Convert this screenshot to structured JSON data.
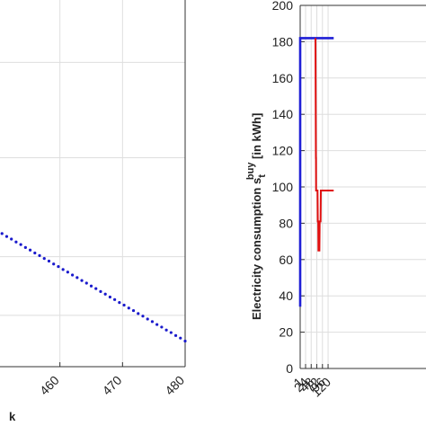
{
  "chart_data": [
    {
      "type": "scatter",
      "title": "",
      "xlabel": "",
      "ylabel": "",
      "x_axis_label_fragment": "k",
      "xlim": [
        450,
        480
      ],
      "x_ticks": [
        460,
        470,
        480
      ],
      "x_tick_labels": [
        "460",
        "470",
        "480"
      ],
      "ylim": [
        0,
        1
      ],
      "grid": true,
      "colors": {
        "points": "#1a1acc"
      },
      "series": [
        {
          "x": [
            450.0,
            450.75,
            451.5,
            452.25,
            453.0,
            453.75,
            454.5,
            455.25,
            456.0,
            456.75,
            457.5,
            458.25,
            459.0,
            459.75,
            460.5,
            461.25,
            462.0,
            462.75,
            463.5,
            464.25,
            465.0,
            465.75,
            466.5,
            467.25,
            468.0,
            468.75,
            469.5,
            470.25,
            471.0,
            471.75,
            472.5,
            473.25,
            474.0,
            474.75,
            475.5,
            476.25,
            477.0,
            477.75,
            478.5,
            479.25,
            480.0
          ],
          "y": [
            0.37,
            0.363,
            0.355,
            0.348,
            0.34,
            0.333,
            0.325,
            0.318,
            0.31,
            0.303,
            0.295,
            0.288,
            0.28,
            0.273,
            0.265,
            0.258,
            0.25,
            0.243,
            0.235,
            0.228,
            0.22,
            0.213,
            0.205,
            0.198,
            0.19,
            0.183,
            0.175,
            0.168,
            0.16,
            0.153,
            0.145,
            0.138,
            0.13,
            0.123,
            0.115,
            0.108,
            0.1,
            0.093,
            0.085,
            0.078,
            0.07
          ]
        }
      ]
    },
    {
      "type": "line",
      "title": "",
      "ylabel_main": "Electricity consumption s",
      "ylabel_sup": "buy",
      "ylabel_sub": "t",
      "ylabel_unit": " [in kWh]",
      "ylim": [
        0,
        200
      ],
      "xlim": [
        1,
        144
      ],
      "y_ticks": [
        0,
        20,
        40,
        60,
        80,
        100,
        120,
        140,
        160,
        180,
        200
      ],
      "y_tick_labels": [
        "0",
        "20",
        "40",
        "60",
        "80",
        "100",
        "120",
        "140",
        "160",
        "180",
        "200"
      ],
      "x_ticks": [
        1,
        24,
        48,
        72,
        96,
        120
      ],
      "x_tick_labels": [
        "1",
        "24",
        "48",
        "72",
        "96",
        "120"
      ],
      "grid": true,
      "colors": {
        "blue": "#1f1fd6",
        "red": "#e01010"
      },
      "series": [
        {
          "color": "blue",
          "x": [
            1,
            1,
            144
          ],
          "y": [
            34,
            182,
            182
          ]
        },
        {
          "color": "red",
          "x": [
            66,
            68,
            68.5,
            69,
            70,
            75,
            76,
            78,
            79,
            79.5,
            83,
            84,
            84.5,
            88,
            89,
            144
          ],
          "y": [
            182,
            116,
            116,
            98,
            98,
            98,
            81,
            81,
            65,
            65,
            65,
            81,
            81,
            81,
            98,
            98
          ]
        }
      ]
    }
  ]
}
